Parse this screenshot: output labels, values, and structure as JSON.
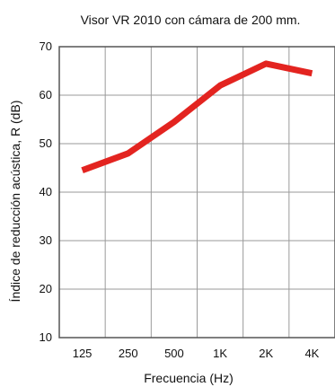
{
  "chart_data": {
    "type": "line",
    "title": "Visor VR 2010 con cámara de 200 mm.",
    "xlabel": "Frecuencia (Hz)",
    "ylabel": "Índice de reducción acústica, R (dB)",
    "categories": [
      "125",
      "250",
      "500",
      "1K",
      "2K",
      "4K"
    ],
    "series": [
      {
        "values": [
          44.5,
          48,
          54.5,
          62,
          66.5,
          64.5
        ]
      }
    ],
    "ylim": [
      10,
      70
    ],
    "yticks": [
      10,
      20,
      30,
      40,
      50,
      60,
      70
    ],
    "grid": true,
    "colors": {
      "line": "#e32420",
      "grid": "#9a9a9a",
      "text": "#111111"
    }
  }
}
